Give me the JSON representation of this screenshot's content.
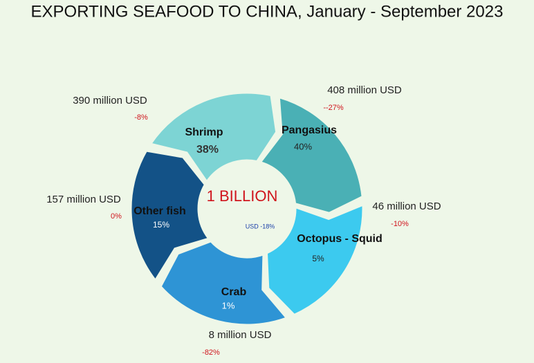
{
  "title": "EXPORTING SEAFOOD TO CHINA, January - September 2023",
  "center": {
    "total": "1 BILLION",
    "note": "USD -18%"
  },
  "segments": [
    {
      "name": "Shrimp",
      "share": "38%",
      "amount": "390 million USD",
      "change": "-8%",
      "color": "#7dd4d4"
    },
    {
      "name": "Pangasius",
      "share": "40%",
      "amount": "408 million USD",
      "change": "--27%",
      "color": "#4ab0b5"
    },
    {
      "name": "Octopus - Squid",
      "share": "5%",
      "amount": "46 million USD",
      "change": "-10%",
      "color": "#3ccaef"
    },
    {
      "name": "Crab",
      "share": "1%",
      "amount": "8 million USD",
      "change": "-82%",
      "color": "#2e94d5"
    },
    {
      "name": "Other fish",
      "share": "15%",
      "amount": "157 million USD",
      "change": "0%",
      "color": "#135287"
    }
  ]
}
